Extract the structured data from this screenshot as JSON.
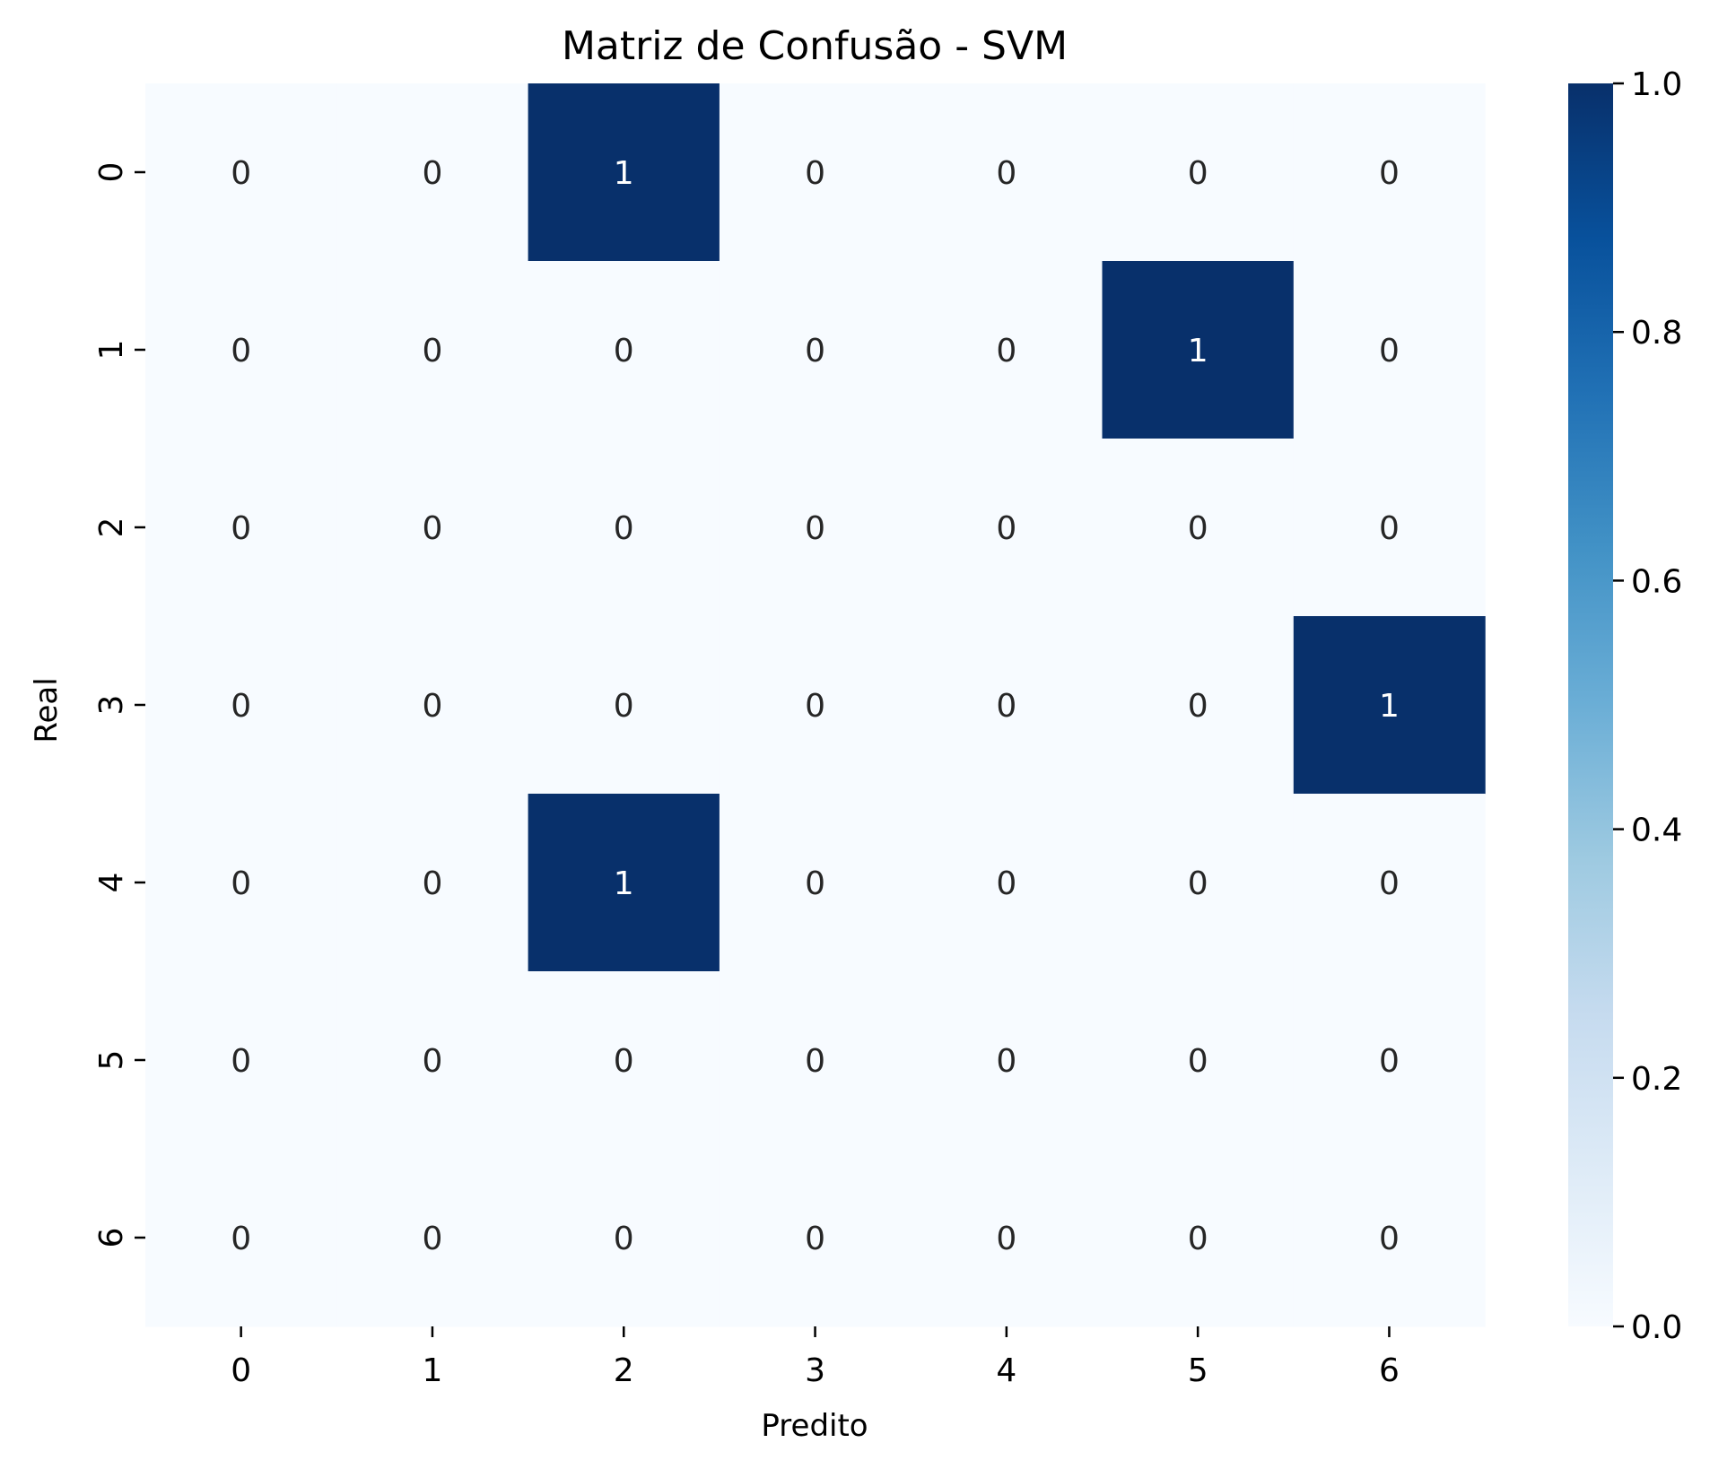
{
  "chart_data": {
    "type": "heatmap",
    "title": "Matriz de Confusão - SVM",
    "xlabel": "Predito",
    "ylabel": "Real",
    "x_categories": [
      "0",
      "1",
      "2",
      "3",
      "4",
      "5",
      "6"
    ],
    "y_categories": [
      "0",
      "1",
      "2",
      "3",
      "4",
      "5",
      "6"
    ],
    "values": [
      [
        0,
        0,
        1,
        0,
        0,
        0,
        0
      ],
      [
        0,
        0,
        0,
        0,
        0,
        1,
        0
      ],
      [
        0,
        0,
        0,
        0,
        0,
        0,
        0
      ],
      [
        0,
        0,
        0,
        0,
        0,
        0,
        1
      ],
      [
        0,
        0,
        1,
        0,
        0,
        0,
        0
      ],
      [
        0,
        0,
        0,
        0,
        0,
        0,
        0
      ],
      [
        0,
        0,
        0,
        0,
        0,
        0,
        0
      ]
    ],
    "colormap": "Blues",
    "color_min": "#f7fbff",
    "color_max": "#08306b",
    "vmin": 0,
    "vmax": 1,
    "annotated": true,
    "colorbar": {
      "ticks": [
        0.0,
        0.2,
        0.4,
        0.6,
        0.8,
        1.0
      ],
      "tick_labels": [
        "0.0",
        "0.2",
        "0.4",
        "0.6",
        "0.8",
        "1.0"
      ],
      "placement": "right"
    }
  }
}
